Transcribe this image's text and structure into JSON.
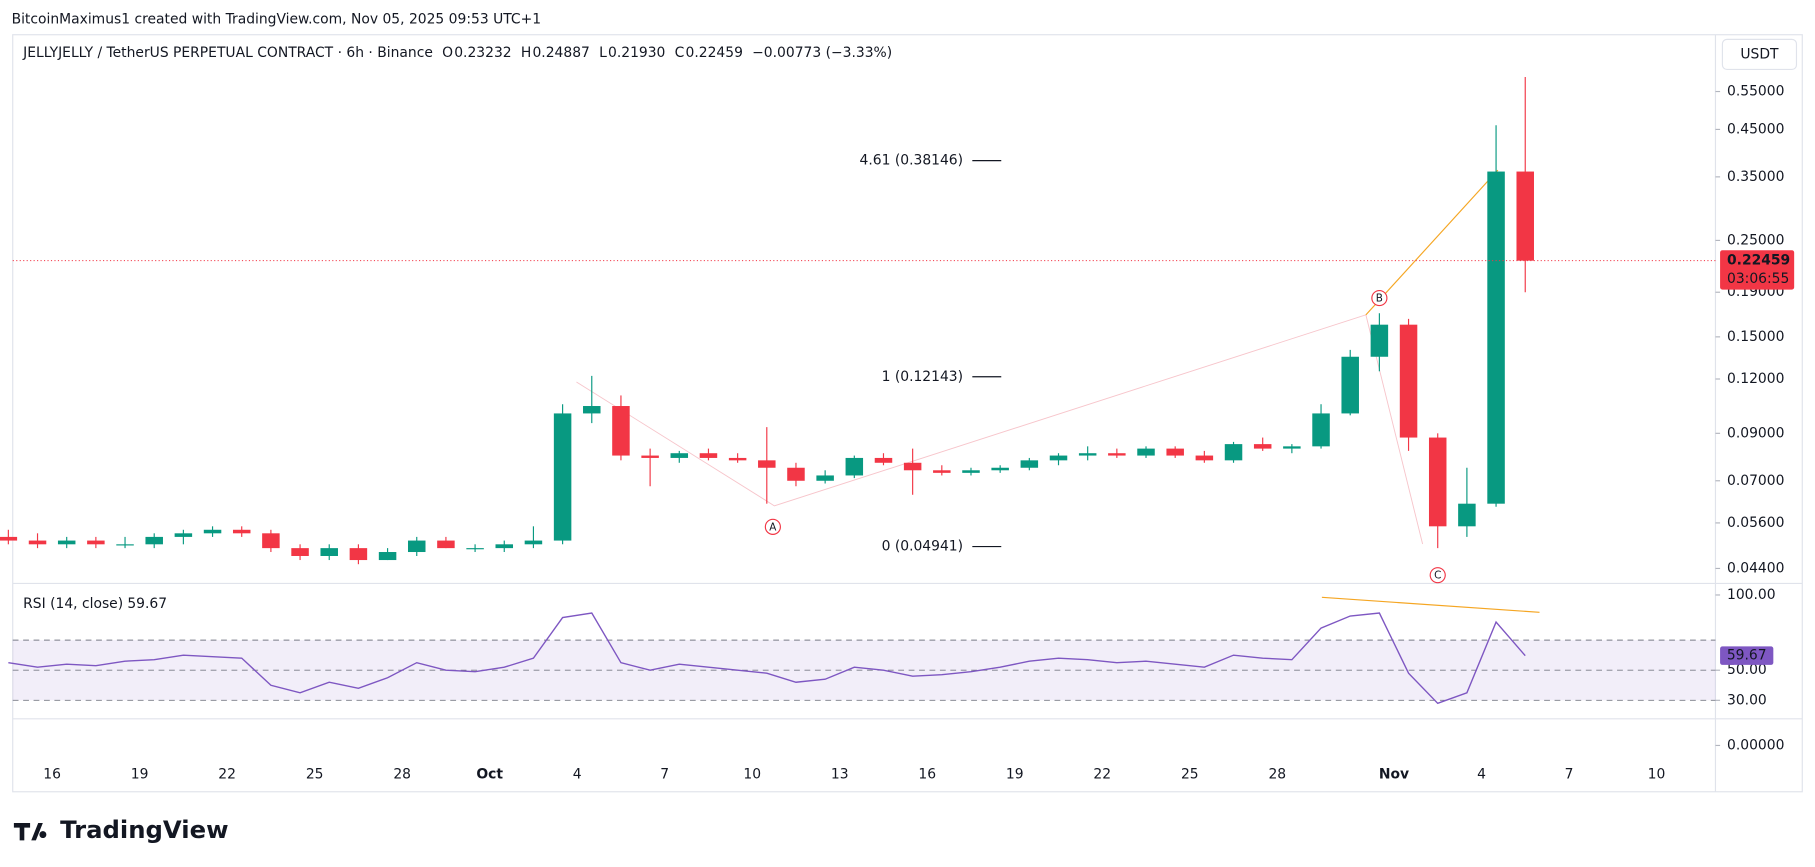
{
  "header": {
    "caption": "BitcoinMaximus1 created with TradingView.com, Nov 05, 2025 09:53 UTC+1",
    "symbol": "JELLYJELLY / TetherUS PERPETUAL CONTRACT · 6h · Binance",
    "ohlc": [
      {
        "label": "O",
        "value": "0.23232"
      },
      {
        "label": "H",
        "value": "0.24887"
      },
      {
        "label": "L",
        "value": "0.21930"
      },
      {
        "label": "C",
        "value": "0.22459"
      }
    ],
    "change": "−0.00773 (−3.33%)",
    "currency": "USDT",
    "brand": "TradingView"
  },
  "chart_data": [
    {
      "type": "candlestick",
      "up_color": "#089981",
      "down_color": "#f23645",
      "log_scale": true,
      "x": [
        "2025-09-14",
        "2025-09-15",
        "2025-09-16",
        "2025-09-17",
        "2025-09-18",
        "2025-09-19",
        "2025-09-20",
        "2025-09-21",
        "2025-09-22",
        "2025-09-23",
        "2025-09-24",
        "2025-09-25",
        "2025-09-26",
        "2025-09-27",
        "2025-09-28",
        "2025-09-29",
        "2025-09-30",
        "2025-10-01",
        "2025-10-02",
        "2025-10-03",
        "2025-10-04",
        "2025-10-05",
        "2025-10-06",
        "2025-10-07",
        "2025-10-08",
        "2025-10-09",
        "2025-10-10",
        "2025-10-11",
        "2025-10-12",
        "2025-10-13",
        "2025-10-14",
        "2025-10-15",
        "2025-10-16",
        "2025-10-17",
        "2025-10-18",
        "2025-10-19",
        "2025-10-20",
        "2025-10-21",
        "2025-10-22",
        "2025-10-23",
        "2025-10-24",
        "2025-10-25",
        "2025-10-26",
        "2025-10-27",
        "2025-10-28",
        "2025-10-29",
        "2025-10-30",
        "2025-10-31",
        "2025-11-01",
        "2025-11-02",
        "2025-11-03",
        "2025-11-04",
        "2025-11-05"
      ],
      "open": [
        0.052,
        0.051,
        0.05,
        0.051,
        0.05,
        0.05,
        0.052,
        0.053,
        0.054,
        0.053,
        0.049,
        0.047,
        0.049,
        0.046,
        0.048,
        0.051,
        0.049,
        0.049,
        0.05,
        0.051,
        0.1,
        0.104,
        0.08,
        0.079,
        0.081,
        0.079,
        0.078,
        0.075,
        0.07,
        0.072,
        0.079,
        0.077,
        0.074,
        0.073,
        0.074,
        0.075,
        0.078,
        0.08,
        0.081,
        0.08,
        0.083,
        0.08,
        0.078,
        0.085,
        0.083,
        0.084,
        0.1,
        0.135,
        0.16,
        0.088,
        0.055,
        0.062,
        0.36
      ],
      "high": [
        0.054,
        0.053,
        0.052,
        0.052,
        0.052,
        0.053,
        0.054,
        0.055,
        0.055,
        0.054,
        0.05,
        0.05,
        0.05,
        0.049,
        0.052,
        0.052,
        0.05,
        0.051,
        0.055,
        0.105,
        0.122,
        0.11,
        0.083,
        0.082,
        0.083,
        0.081,
        0.093,
        0.077,
        0.074,
        0.08,
        0.081,
        0.083,
        0.076,
        0.075,
        0.076,
        0.079,
        0.081,
        0.084,
        0.083,
        0.084,
        0.084,
        0.082,
        0.086,
        0.088,
        0.085,
        0.105,
        0.14,
        0.17,
        0.165,
        0.09,
        0.075,
        0.46,
        0.594
      ],
      "low": [
        0.05,
        0.049,
        0.049,
        0.049,
        0.049,
        0.049,
        0.05,
        0.052,
        0.052,
        0.048,
        0.046,
        0.046,
        0.045,
        0.046,
        0.047,
        0.049,
        0.048,
        0.048,
        0.049,
        0.05,
        0.095,
        0.078,
        0.068,
        0.077,
        0.078,
        0.077,
        0.062,
        0.068,
        0.069,
        0.071,
        0.076,
        0.065,
        0.072,
        0.072,
        0.073,
        0.074,
        0.076,
        0.078,
        0.079,
        0.079,
        0.079,
        0.077,
        0.077,
        0.082,
        0.081,
        0.083,
        0.099,
        0.125,
        0.082,
        0.049,
        0.052,
        0.061,
        0.19
      ],
      "close": [
        0.051,
        0.05,
        0.051,
        0.05,
        0.05,
        0.052,
        0.053,
        0.054,
        0.053,
        0.049,
        0.047,
        0.049,
        0.046,
        0.048,
        0.051,
        0.049,
        0.049,
        0.05,
        0.051,
        0.1,
        0.104,
        0.08,
        0.079,
        0.081,
        0.079,
        0.078,
        0.075,
        0.07,
        0.072,
        0.079,
        0.077,
        0.074,
        0.073,
        0.074,
        0.075,
        0.078,
        0.08,
        0.081,
        0.08,
        0.083,
        0.08,
        0.078,
        0.085,
        0.083,
        0.084,
        0.1,
        0.135,
        0.16,
        0.088,
        0.055,
        0.062,
        0.36,
        0.22459
      ],
      "xlim": [
        "2025-09-14T15:36",
        "2025-11-12T00:30"
      ],
      "xticks": [
        {
          "value": "2025-09-16",
          "label": "16"
        },
        {
          "value": "2025-09-19",
          "label": "19"
        },
        {
          "value": "2025-09-22",
          "label": "22"
        },
        {
          "value": "2025-09-25",
          "label": "25"
        },
        {
          "value": "2025-09-28",
          "label": "28"
        },
        {
          "value": "2025-10-01",
          "label": "Oct"
        },
        {
          "value": "2025-10-04",
          "label": "4"
        },
        {
          "value": "2025-10-07",
          "label": "7"
        },
        {
          "value": "2025-10-10",
          "label": "10"
        },
        {
          "value": "2025-10-13",
          "label": "13"
        },
        {
          "value": "2025-10-16",
          "label": "16"
        },
        {
          "value": "2025-10-19",
          "label": "19"
        },
        {
          "value": "2025-10-22",
          "label": "22"
        },
        {
          "value": "2025-10-25",
          "label": "25"
        },
        {
          "value": "2025-10-28",
          "label": "28"
        },
        {
          "value": "2025-11-01",
          "label": "Nov"
        },
        {
          "value": "2025-11-04",
          "label": "4"
        },
        {
          "value": "2025-11-07",
          "label": "7"
        },
        {
          "value": "2025-11-10",
          "label": "10"
        }
      ],
      "ylim": [
        0.0409,
        0.743
      ],
      "yticks": [
        {
          "value": 0.55,
          "label": "0.55000"
        },
        {
          "value": 0.45,
          "label": "0.45000"
        },
        {
          "value": 0.35,
          "label": "0.35000"
        },
        {
          "value": 0.25,
          "label": "0.25000"
        },
        {
          "value": 0.19,
          "label": "0.19000"
        },
        {
          "value": 0.15,
          "label": "0.15000"
        },
        {
          "value": 0.12,
          "label": "0.12000"
        },
        {
          "value": 0.09,
          "label": "0.09000"
        },
        {
          "value": 0.07,
          "label": "0.07000"
        },
        {
          "value": 0.056,
          "label": "0.05600"
        },
        {
          "value": 0.044,
          "label": "0.04400"
        }
      ],
      "last_price": 0.22459,
      "countdown": "03:06:55",
      "fib_levels": [
        {
          "label": "4.61 (0.38146)",
          "value": 0.38146
        },
        {
          "label": "1 (0.12143)",
          "value": 0.12143
        },
        {
          "label": "0 (0.04941)",
          "value": 0.04941
        }
      ],
      "points": [
        {
          "label": "A",
          "x": "2025-10-10T17:00",
          "value": 0.062
        },
        {
          "label": "B",
          "x": "2025-10-31T12:00",
          "value": 0.167
        },
        {
          "label": "C",
          "x": "2025-11-02T12:00",
          "value": 0.048
        }
      ]
    },
    {
      "type": "line",
      "title": "RSI (14, close)",
      "last_value": 59.67,
      "series": [
        {
          "name": "RSI",
          "color": "#7e57c2",
          "values": [
            55,
            52,
            54,
            53,
            56,
            57,
            60,
            59,
            58,
            40,
            35,
            42,
            38,
            45,
            55,
            50,
            49,
            52,
            58,
            85,
            88,
            55,
            50,
            54,
            52,
            50,
            48,
            42,
            44,
            52,
            50,
            46,
            47,
            49,
            52,
            56,
            58,
            57,
            55,
            56,
            54,
            52,
            60,
            58,
            57,
            78,
            86,
            88,
            48,
            28,
            35,
            82,
            59.67
          ]
        }
      ],
      "ylim": [
        0,
        100
      ],
      "yticks": [
        {
          "value": 100,
          "label": "100.00"
        },
        {
          "value": 50,
          "label": "50.00"
        },
        {
          "value": 30,
          "label": "30.00"
        },
        {
          "value": 0,
          "label": "0.00000"
        }
      ],
      "levels": [
        70,
        50,
        30
      ]
    }
  ]
}
